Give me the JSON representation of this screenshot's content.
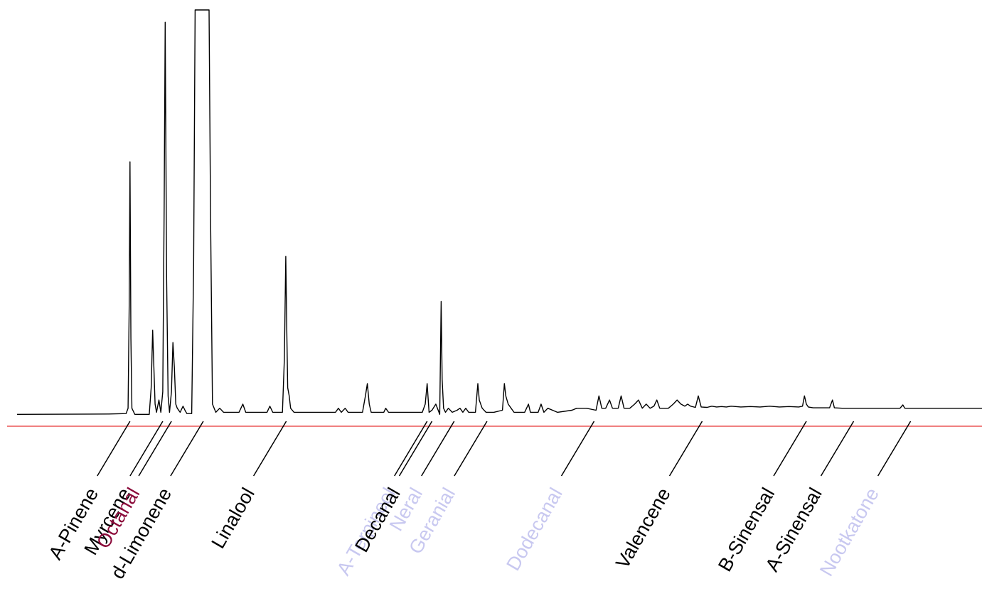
{
  "chart_data": {
    "type": "line",
    "title": "",
    "xlabel": "",
    "ylabel": "",
    "xlim": [
      0,
      100
    ],
    "ylim": [
      0,
      100
    ],
    "colors": {
      "trace": "#000000",
      "baseline": "#f08080",
      "highlight": "#8b0a3a",
      "faded": "#c8c8f0",
      "normal": "#000000"
    },
    "series": [
      {
        "points": [
          [
            0,
            1.5
          ],
          [
            9.5,
            1.6
          ],
          [
            11.3,
            1.7
          ],
          [
            11.5,
            3
          ],
          [
            11.62,
            28
          ],
          [
            11.7,
            63
          ],
          [
            11.8,
            20
          ],
          [
            11.9,
            3
          ],
          [
            12.2,
            1.5
          ],
          [
            13.7,
            1.5
          ],
          [
            13.9,
            8
          ],
          [
            14.05,
            22
          ],
          [
            14.15,
            15
          ],
          [
            14.3,
            4
          ],
          [
            14.45,
            2
          ],
          [
            14.7,
            5
          ],
          [
            14.9,
            2
          ],
          [
            15.1,
            7
          ],
          [
            15.25,
            53
          ],
          [
            15.35,
            97
          ],
          [
            15.5,
            35
          ],
          [
            15.65,
            6
          ],
          [
            15.8,
            2
          ],
          [
            16.0,
            7
          ],
          [
            16.15,
            19
          ],
          [
            16.3,
            13
          ],
          [
            16.45,
            4
          ],
          [
            16.6,
            3
          ],
          [
            16.9,
            2
          ],
          [
            17.2,
            3.5
          ],
          [
            17.4,
            2.5
          ],
          [
            17.6,
            1.7
          ],
          [
            18.1,
            1.7
          ],
          [
            18.3,
            38
          ],
          [
            18.45,
            100
          ],
          [
            19.9,
            100
          ],
          [
            20.05,
            50
          ],
          [
            20.25,
            4
          ],
          [
            20.6,
            2
          ],
          [
            21.0,
            3
          ],
          [
            21.4,
            2
          ],
          [
            23.0,
            2
          ],
          [
            23.4,
            4
          ],
          [
            23.7,
            2
          ],
          [
            25.9,
            2
          ],
          [
            26.2,
            3.5
          ],
          [
            26.5,
            2
          ],
          [
            27.5,
            2
          ],
          [
            27.7,
            15
          ],
          [
            27.85,
            40
          ],
          [
            27.95,
            22
          ],
          [
            28.05,
            8
          ],
          [
            28.2,
            6
          ],
          [
            28.35,
            3
          ],
          [
            28.7,
            2
          ],
          [
            33.0,
            2
          ],
          [
            33.3,
            3
          ],
          [
            33.6,
            2
          ],
          [
            34.0,
            3
          ],
          [
            34.3,
            2
          ],
          [
            35.8,
            2
          ],
          [
            36.1,
            6
          ],
          [
            36.3,
            9
          ],
          [
            36.5,
            4
          ],
          [
            36.7,
            2
          ],
          [
            38.0,
            2
          ],
          [
            38.2,
            3
          ],
          [
            38.5,
            2
          ],
          [
            42.0,
            2
          ],
          [
            42.3,
            4
          ],
          [
            42.5,
            9
          ],
          [
            42.7,
            2
          ],
          [
            43.0,
            2.5
          ],
          [
            43.4,
            4
          ],
          [
            43.8,
            1.5
          ],
          [
            43.95,
            29
          ],
          [
            44.05,
            10
          ],
          [
            44.2,
            3
          ],
          [
            44.4,
            2
          ],
          [
            44.7,
            3
          ],
          [
            45.1,
            2
          ],
          [
            45.6,
            2.5
          ],
          [
            45.9,
            3
          ],
          [
            46.2,
            2
          ],
          [
            46.5,
            3
          ],
          [
            46.8,
            2
          ],
          [
            47.5,
            2
          ],
          [
            47.75,
            9
          ],
          [
            47.9,
            5
          ],
          [
            48.2,
            3
          ],
          [
            48.6,
            2
          ],
          [
            49.4,
            2
          ],
          [
            50.3,
            2.5
          ],
          [
            50.5,
            9
          ],
          [
            50.65,
            6
          ],
          [
            50.9,
            4
          ],
          [
            51.2,
            3
          ],
          [
            51.5,
            2
          ],
          [
            52.6,
            2
          ],
          [
            53.0,
            4
          ],
          [
            53.2,
            2
          ],
          [
            54.0,
            2
          ],
          [
            54.3,
            4
          ],
          [
            54.6,
            2
          ],
          [
            55.0,
            3
          ],
          [
            56.0,
            2
          ],
          [
            57.5,
            2.5
          ],
          [
            58.0,
            3
          ],
          [
            59.0,
            3
          ],
          [
            60.0,
            2.5
          ],
          [
            60.3,
            6
          ],
          [
            60.6,
            3
          ],
          [
            61.0,
            3
          ],
          [
            61.4,
            5
          ],
          [
            61.7,
            3
          ],
          [
            62.3,
            3
          ],
          [
            62.6,
            6
          ],
          [
            62.9,
            3
          ],
          [
            63.5,
            3
          ],
          [
            64.0,
            4
          ],
          [
            64.4,
            5
          ],
          [
            64.8,
            3
          ],
          [
            65.2,
            4
          ],
          [
            65.6,
            3
          ],
          [
            66.0,
            3.5
          ],
          [
            66.3,
            5
          ],
          [
            66.6,
            3
          ],
          [
            67.5,
            3
          ],
          [
            68.0,
            4
          ],
          [
            68.4,
            5
          ],
          [
            68.8,
            4
          ],
          [
            69.2,
            3.5
          ],
          [
            69.5,
            4
          ],
          [
            69.8,
            3.5
          ],
          [
            70.3,
            3.2
          ],
          [
            70.6,
            6
          ],
          [
            70.9,
            3.3
          ],
          [
            71.5,
            3.2
          ],
          [
            72.0,
            3.5
          ],
          [
            72.5,
            3.3
          ],
          [
            73.0,
            3.4
          ],
          [
            73.5,
            3.3
          ],
          [
            74.0,
            3.5
          ],
          [
            75.0,
            3.3
          ],
          [
            76.0,
            3.4
          ],
          [
            77.0,
            3.3
          ],
          [
            78.0,
            3.5
          ],
          [
            79.0,
            3.3
          ],
          [
            80.0,
            3.4
          ],
          [
            81.0,
            3.3
          ],
          [
            81.4,
            3.5
          ],
          [
            81.6,
            6
          ],
          [
            81.8,
            4
          ],
          [
            82.0,
            3.3
          ],
          [
            82.5,
            3.1
          ],
          [
            83.5,
            3.1
          ],
          [
            84.2,
            3.1
          ],
          [
            84.5,
            5
          ],
          [
            84.7,
            3.1
          ],
          [
            85.5,
            3
          ],
          [
            87.0,
            3
          ],
          [
            90.0,
            3
          ],
          [
            91.5,
            3
          ],
          [
            91.8,
            3.8
          ],
          [
            92.0,
            3
          ],
          [
            94.0,
            3
          ],
          [
            100,
            3
          ]
        ]
      }
    ],
    "annotations": [
      {
        "label": "A-Pinene",
        "x": 11.7,
        "style": "normal"
      },
      {
        "label": "Myrcene",
        "x": 15.1,
        "style": "normal"
      },
      {
        "label": "Octanal",
        "x": 16.0,
        "style": "highlight"
      },
      {
        "label": "d-Limonene",
        "x": 19.3,
        "style": "normal"
      },
      {
        "label": "Linalool",
        "x": 27.9,
        "style": "normal"
      },
      {
        "label": "A-Terpineol",
        "x": 42.5,
        "style": "faded"
      },
      {
        "label": "Decanal",
        "x": 43.0,
        "style": "normal"
      },
      {
        "label": "Neral",
        "x": 45.3,
        "style": "faded"
      },
      {
        "label": "Geranial",
        "x": 48.7,
        "style": "faded"
      },
      {
        "label": "Dodecanal",
        "x": 59.8,
        "style": "faded"
      },
      {
        "label": "Valencene",
        "x": 71.0,
        "style": "normal"
      },
      {
        "label": "B-Sinensal",
        "x": 81.8,
        "style": "normal"
      },
      {
        "label": "A-Sinensal",
        "x": 86.7,
        "style": "normal"
      },
      {
        "label": "Nootkatone",
        "x": 92.6,
        "style": "faded"
      }
    ],
    "grid": false,
    "legend": "none"
  }
}
